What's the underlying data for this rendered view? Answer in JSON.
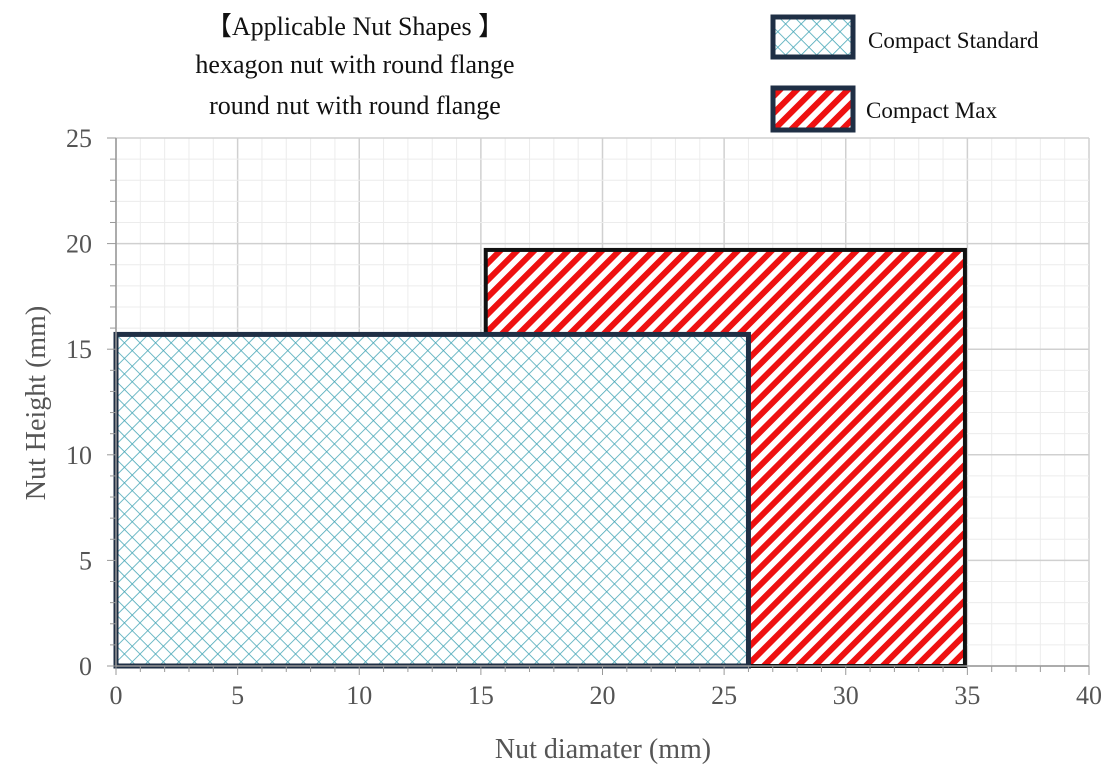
{
  "chart_data": {
    "type": "area",
    "title_lines": [
      "【Applicable Nut Shapes 】",
      "hexagon nut with round flange",
      "round nut with round flange"
    ],
    "xlabel": "Nut diamater (mm)",
    "ylabel": "Nut  Height (mm)",
    "xlim": [
      0,
      40
    ],
    "ylim": [
      0,
      25
    ],
    "x_ticks": [
      "0",
      "5",
      "10",
      "15",
      "20",
      "25",
      "30",
      "35",
      "40"
    ],
    "y_ticks": [
      "0",
      "5",
      "10",
      "15",
      "20",
      "25"
    ],
    "grid": true,
    "legend_position": "top-right",
    "series": [
      {
        "name": "Compact Max",
        "x_range": [
          15.2,
          34.9
        ],
        "y_range": [
          0,
          19.7
        ],
        "fill_color": "#ee1111",
        "pattern": "diagonal-stripes",
        "border_color": "#111111"
      },
      {
        "name": "Compact Standard",
        "x_range": [
          0,
          26
        ],
        "y_range": [
          0,
          15.7
        ],
        "fill_color": "#4aa8b8",
        "pattern": "crosshatch",
        "border_color": "#1f2f45"
      }
    ]
  }
}
